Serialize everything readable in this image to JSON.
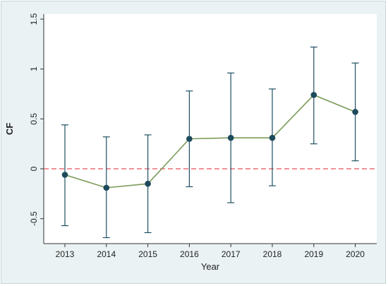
{
  "chart_data": {
    "type": "line",
    "xlabel": "Year",
    "ylabel": "CF",
    "x": [
      "2013",
      "2014",
      "2015",
      "2016",
      "2017",
      "2018",
      "2019",
      "2020"
    ],
    "series": [
      {
        "values": [
          -0.06,
          -0.19,
          -0.15,
          0.3,
          0.31,
          0.31,
          0.74,
          0.57
        ],
        "lower": [
          -0.57,
          -0.69,
          -0.64,
          -0.18,
          -0.34,
          -0.17,
          0.25,
          0.08
        ],
        "upper": [
          0.44,
          0.32,
          0.34,
          0.78,
          0.96,
          0.8,
          1.22,
          1.06
        ]
      }
    ],
    "yticks": [
      "-0.5",
      "0",
      "0.5",
      "1",
      "1.5"
    ],
    "ytick_values": [
      -0.5,
      0,
      0.5,
      1,
      1.5
    ],
    "ylim": [
      -0.75,
      1.55
    ],
    "reference_line": {
      "y": 0,
      "style": "dashed",
      "color": "#e8505b"
    },
    "grid": false,
    "legend": "none",
    "colors": {
      "line": "#7b9a58",
      "marker": "#1d4a5c",
      "errorbar": "#1f4f63",
      "background": "#eaf2f3",
      "plot": "#ffffff"
    }
  }
}
